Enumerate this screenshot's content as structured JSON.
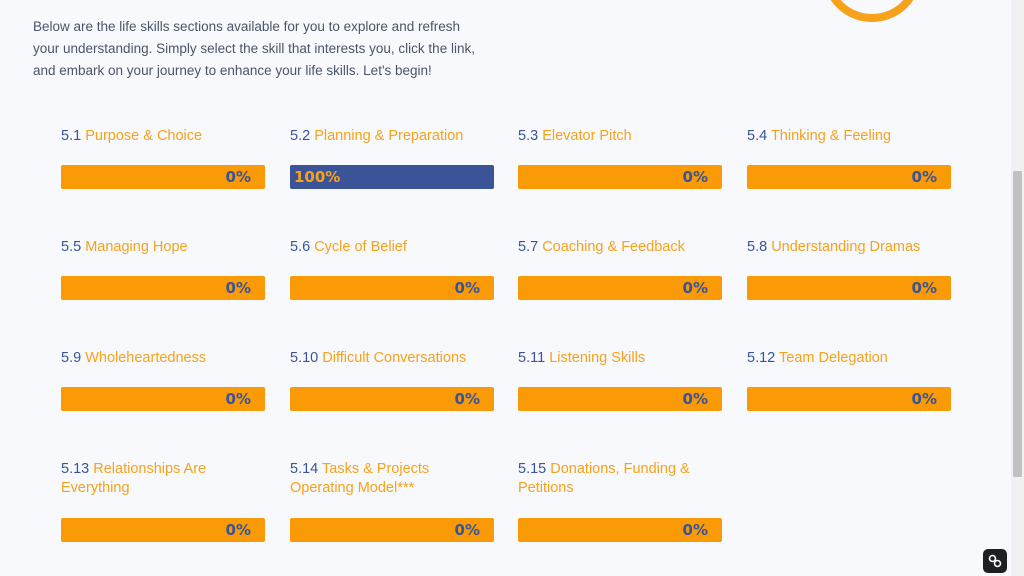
{
  "intro": "Below are the life skills sections available for you to explore and refresh your understanding. Simply select the skill that interests you, click the link, and embark on your journey to enhance your life skills. Let's begin!",
  "colors": {
    "accent": "#f7a21a",
    "bar": "#f99a06",
    "primary": "#3a5497",
    "background": "#f7f9fc"
  },
  "skills": [
    {
      "num": "5.1",
      "title": "Purpose & Choice",
      "progress": 0,
      "label": "0%"
    },
    {
      "num": "5.2",
      "title": "Planning & Preparation",
      "progress": 100,
      "label": "100%"
    },
    {
      "num": "5.3",
      "title": "Elevator Pitch",
      "progress": 0,
      "label": "0%"
    },
    {
      "num": "5.4",
      "title": "Thinking & Feeling",
      "progress": 0,
      "label": "0%"
    },
    {
      "num": "5.5",
      "title": "Managing Hope",
      "progress": 0,
      "label": "0%"
    },
    {
      "num": "5.6",
      "title": "Cycle of Belief",
      "progress": 0,
      "label": "0%"
    },
    {
      "num": "5.7",
      "title": "Coaching & Feedback",
      "progress": 0,
      "label": "0%"
    },
    {
      "num": "5.8",
      "title": "Understanding Dramas",
      "progress": 0,
      "label": "0%"
    },
    {
      "num": "5.9",
      "title": "Wholeheartedness",
      "progress": 0,
      "label": "0%"
    },
    {
      "num": "5.10",
      "title": "Difficult Conversations",
      "progress": 0,
      "label": "0%"
    },
    {
      "num": "5.11",
      "title": "Listening Skills",
      "progress": 0,
      "label": "0%"
    },
    {
      "num": "5.12",
      "title": "Team Delegation",
      "progress": 0,
      "label": "0%"
    },
    {
      "num": "5.13",
      "title": "Relationships Are Everything",
      "progress": 0,
      "label": "0%"
    },
    {
      "num": "5.14",
      "title": "Tasks & Projects Operating Model***",
      "progress": 0,
      "label": "0%"
    },
    {
      "num": "5.15",
      "title": "Donations, Funding & Petitions",
      "progress": 0,
      "label": "0%"
    }
  ],
  "icons": {
    "decoration": "ring-icon",
    "extension": "link-icon"
  }
}
